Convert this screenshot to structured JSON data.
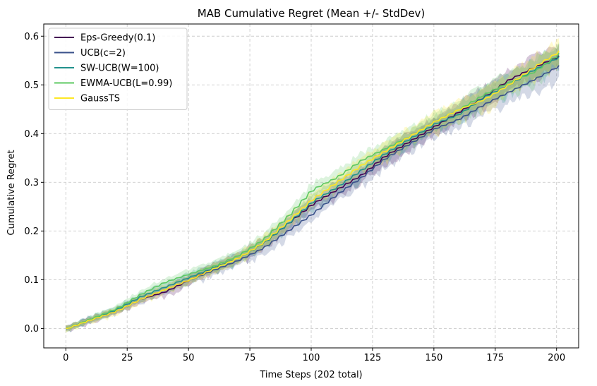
{
  "chart_data": {
    "type": "line",
    "title": "MAB Cumulative Regret (Mean +/- StdDev)",
    "xlabel": "Time Steps (202 total)",
    "ylabel": "Cumulative Regret",
    "xlim": [
      -9,
      209
    ],
    "ylim": [
      -0.04,
      0.625
    ],
    "xticks": [
      0,
      25,
      50,
      75,
      100,
      125,
      150,
      175,
      200
    ],
    "yticks": [
      0.0,
      0.1,
      0.2,
      0.3,
      0.4,
      0.5,
      0.6
    ],
    "ytick_labels": [
      "0.0",
      "0.1",
      "0.2",
      "0.3",
      "0.4",
      "0.5",
      "0.6"
    ],
    "grid": true,
    "legend_position": "upper-left",
    "x": [
      0,
      10,
      20,
      30,
      40,
      50,
      60,
      70,
      80,
      90,
      100,
      110,
      120,
      130,
      140,
      150,
      160,
      170,
      180,
      190,
      201
    ],
    "series": [
      {
        "name": "Eps-Greedy(0.1)",
        "color": "#440154",
        "values": [
          0.0,
          0.018,
          0.035,
          0.06,
          0.075,
          0.1,
          0.125,
          0.145,
          0.175,
          0.215,
          0.255,
          0.285,
          0.315,
          0.355,
          0.385,
          0.415,
          0.445,
          0.475,
          0.51,
          0.535,
          0.56
        ]
      },
      {
        "name": "UCB(c=2)",
        "color": "#3b528b",
        "values": [
          0.0,
          0.02,
          0.035,
          0.06,
          0.08,
          0.1,
          0.12,
          0.14,
          0.165,
          0.2,
          0.235,
          0.275,
          0.31,
          0.35,
          0.38,
          0.41,
          0.43,
          0.46,
          0.485,
          0.51,
          0.54
        ]
      },
      {
        "name": "SW-UCB(W=100)",
        "color": "#21918c",
        "values": [
          0.0,
          0.02,
          0.038,
          0.065,
          0.085,
          0.105,
          0.125,
          0.145,
          0.175,
          0.215,
          0.26,
          0.29,
          0.325,
          0.36,
          0.39,
          0.42,
          0.44,
          0.475,
          0.5,
          0.53,
          0.558
        ]
      },
      {
        "name": "EWMA-UCB(L=0.99)",
        "color": "#5ec962",
        "values": [
          0.0,
          0.02,
          0.04,
          0.07,
          0.095,
          0.112,
          0.128,
          0.15,
          0.182,
          0.23,
          0.285,
          0.31,
          0.345,
          0.37,
          0.395,
          0.425,
          0.45,
          0.48,
          0.505,
          0.525,
          0.565
        ]
      },
      {
        "name": "GaussTS",
        "color": "#fde725",
        "values": [
          0.0,
          0.018,
          0.035,
          0.06,
          0.08,
          0.1,
          0.123,
          0.145,
          0.176,
          0.22,
          0.265,
          0.3,
          0.335,
          0.365,
          0.395,
          0.425,
          0.45,
          0.47,
          0.5,
          0.535,
          0.57
        ]
      }
    ]
  }
}
